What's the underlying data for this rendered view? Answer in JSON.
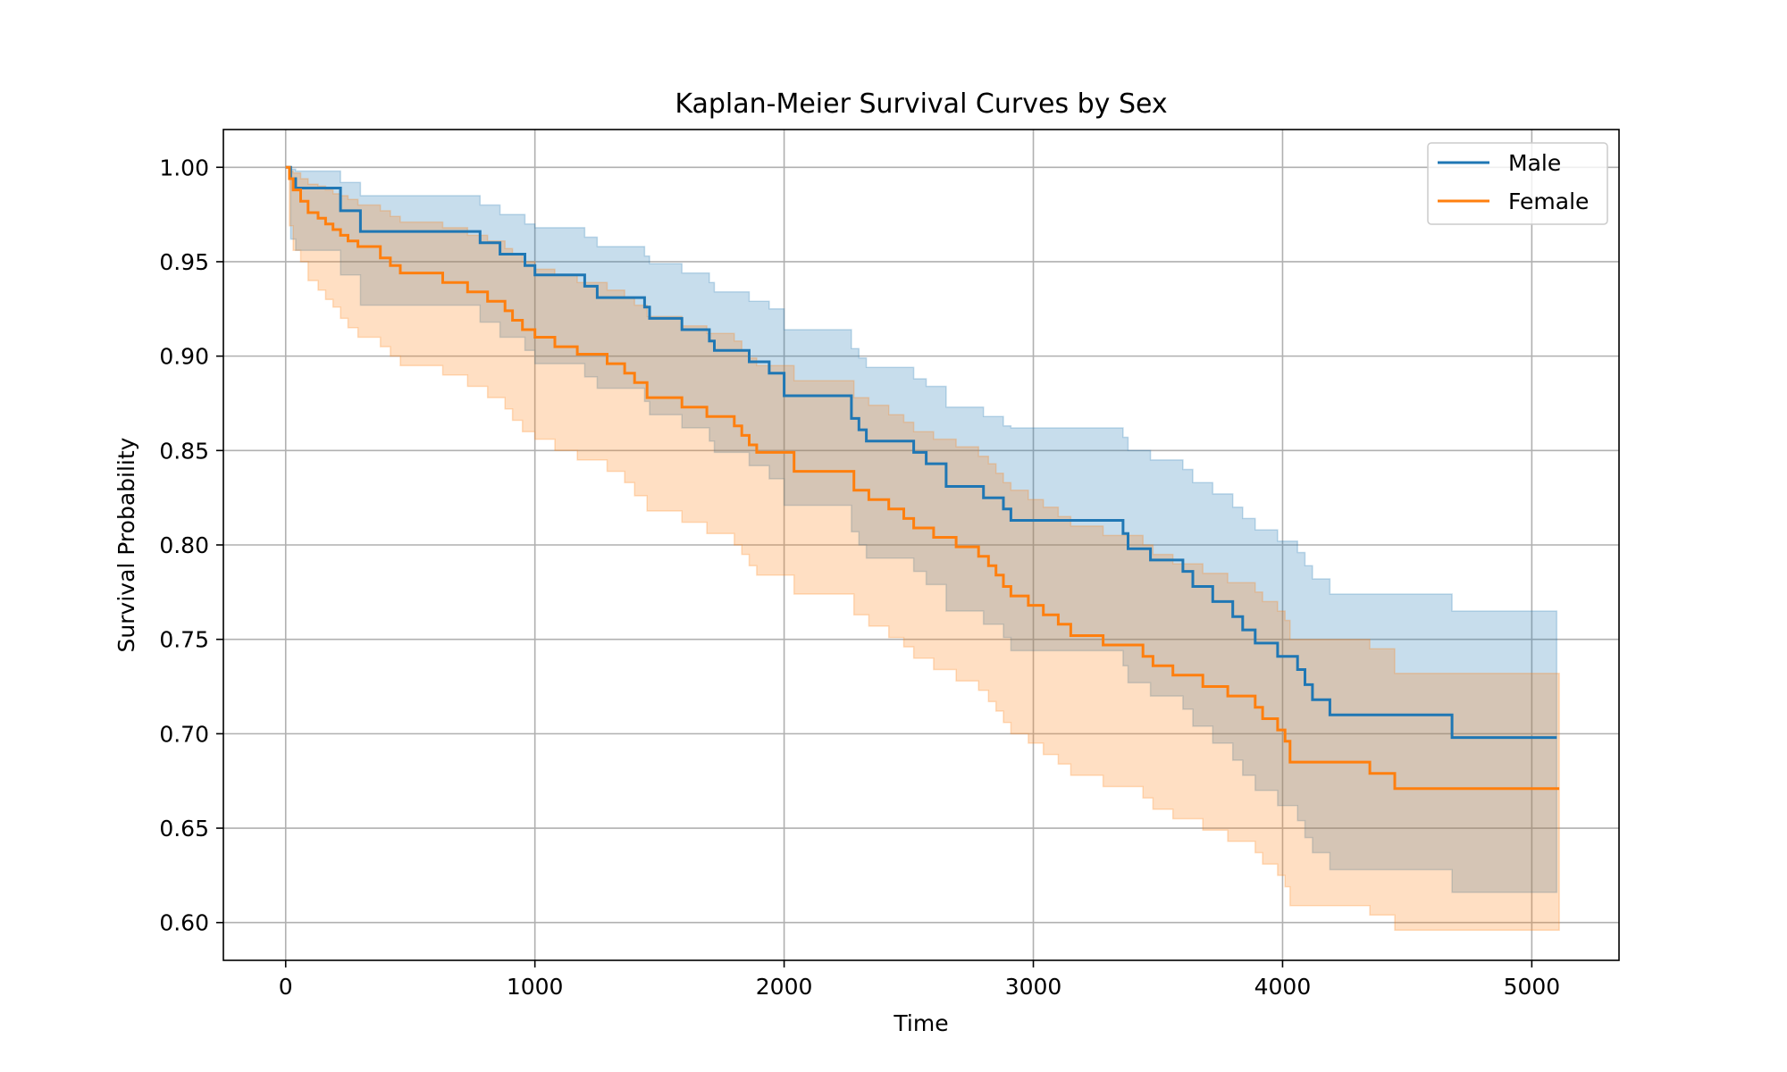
{
  "chart_data": {
    "type": "line",
    "step": "post",
    "title": "Kaplan-Meier Survival Curves by Sex",
    "xlabel": "Time",
    "ylabel": "Survival Probability",
    "xlim": [
      -250,
      5350
    ],
    "ylim": [
      0.58,
      1.02
    ],
    "xticks": [
      0,
      1000,
      2000,
      3000,
      4000,
      5000
    ],
    "yticks": [
      0.6,
      0.65,
      0.7,
      0.75,
      0.8,
      0.85,
      0.9,
      0.95,
      1.0
    ],
    "xtick_labels": [
      "0",
      "1000",
      "2000",
      "3000",
      "4000",
      "5000"
    ],
    "ytick_labels": [
      "0.60",
      "0.65",
      "0.70",
      "0.75",
      "0.80",
      "0.85",
      "0.90",
      "0.95",
      "1.00"
    ],
    "grid": true,
    "legend_position": "upper right",
    "series": [
      {
        "name": "Male",
        "color": "#1f77b4",
        "x": [
          0,
          20,
          40,
          220,
          300,
          780,
          860,
          960,
          1000,
          1200,
          1250,
          1440,
          1460,
          1590,
          1700,
          1720,
          1860,
          1940,
          2000,
          2270,
          2300,
          2330,
          2520,
          2570,
          2650,
          2800,
          2880,
          2910,
          3360,
          3380,
          3470,
          3600,
          3640,
          3720,
          3800,
          3840,
          3890,
          3980,
          4060,
          4090,
          4120,
          4190,
          4680,
          5100
        ],
        "y": [
          1.0,
          0.994,
          0.989,
          0.977,
          0.966,
          0.96,
          0.954,
          0.948,
          0.943,
          0.937,
          0.931,
          0.926,
          0.92,
          0.914,
          0.908,
          0.903,
          0.897,
          0.891,
          0.879,
          0.867,
          0.861,
          0.855,
          0.849,
          0.843,
          0.831,
          0.825,
          0.819,
          0.813,
          0.806,
          0.798,
          0.792,
          0.786,
          0.778,
          0.77,
          0.762,
          0.755,
          0.748,
          0.741,
          0.734,
          0.726,
          0.718,
          0.71,
          0.698,
          0.698
        ],
        "ci_x": [
          0,
          20,
          40,
          220,
          300,
          780,
          860,
          960,
          1000,
          1200,
          1250,
          1440,
          1460,
          1590,
          1700,
          1720,
          1860,
          1940,
          2000,
          2270,
          2300,
          2330,
          2520,
          2570,
          2650,
          2800,
          2880,
          2910,
          3360,
          3380,
          3470,
          3600,
          3640,
          3720,
          3800,
          3840,
          3890,
          3980,
          4060,
          4090,
          4120,
          4190,
          4680,
          5100
        ],
        "ci_lower": [
          1.0,
          0.962,
          0.956,
          0.943,
          0.927,
          0.918,
          0.91,
          0.903,
          0.896,
          0.889,
          0.883,
          0.876,
          0.869,
          0.862,
          0.855,
          0.849,
          0.842,
          0.835,
          0.821,
          0.807,
          0.8,
          0.793,
          0.786,
          0.779,
          0.765,
          0.758,
          0.751,
          0.744,
          0.736,
          0.727,
          0.72,
          0.713,
          0.704,
          0.695,
          0.686,
          0.678,
          0.67,
          0.662,
          0.654,
          0.645,
          0.637,
          0.628,
          0.616,
          0.616
        ],
        "ci_upper": [
          1.0,
          0.999,
          0.998,
          0.992,
          0.985,
          0.98,
          0.975,
          0.97,
          0.968,
          0.963,
          0.958,
          0.953,
          0.949,
          0.944,
          0.939,
          0.934,
          0.929,
          0.925,
          0.914,
          0.904,
          0.899,
          0.894,
          0.888,
          0.884,
          0.873,
          0.868,
          0.863,
          0.862,
          0.857,
          0.85,
          0.845,
          0.84,
          0.833,
          0.827,
          0.82,
          0.814,
          0.808,
          0.802,
          0.796,
          0.789,
          0.782,
          0.774,
          0.765,
          0.765
        ]
      },
      {
        "name": "Female",
        "color": "#ff7f0e",
        "x": [
          0,
          15,
          30,
          60,
          90,
          130,
          160,
          190,
          220,
          250,
          290,
          380,
          420,
          460,
          630,
          730,
          810,
          880,
          910,
          950,
          1000,
          1080,
          1170,
          1290,
          1360,
          1400,
          1450,
          1590,
          1690,
          1800,
          1830,
          1860,
          1890,
          2040,
          2280,
          2340,
          2420,
          2480,
          2520,
          2600,
          2690,
          2780,
          2820,
          2850,
          2880,
          2910,
          2980,
          3040,
          3100,
          3150,
          3280,
          3440,
          3480,
          3560,
          3680,
          3780,
          3890,
          3920,
          3980,
          4010,
          4030,
          4350,
          4450,
          5110
        ],
        "y": [
          1.0,
          0.994,
          0.988,
          0.982,
          0.976,
          0.973,
          0.97,
          0.967,
          0.964,
          0.961,
          0.958,
          0.952,
          0.948,
          0.944,
          0.939,
          0.934,
          0.929,
          0.924,
          0.919,
          0.914,
          0.91,
          0.905,
          0.901,
          0.896,
          0.891,
          0.886,
          0.878,
          0.873,
          0.868,
          0.863,
          0.858,
          0.853,
          0.849,
          0.839,
          0.829,
          0.824,
          0.819,
          0.814,
          0.809,
          0.804,
          0.799,
          0.794,
          0.789,
          0.784,
          0.778,
          0.773,
          0.768,
          0.763,
          0.758,
          0.752,
          0.747,
          0.741,
          0.736,
          0.731,
          0.725,
          0.72,
          0.714,
          0.708,
          0.702,
          0.696,
          0.685,
          0.679,
          0.671,
          0.671
        ],
        "ci_x": [
          0,
          15,
          30,
          60,
          90,
          130,
          160,
          190,
          220,
          250,
          290,
          380,
          420,
          460,
          630,
          730,
          810,
          880,
          910,
          950,
          1000,
          1080,
          1170,
          1290,
          1360,
          1400,
          1450,
          1590,
          1690,
          1800,
          1830,
          1860,
          1890,
          2040,
          2280,
          2340,
          2420,
          2480,
          2520,
          2600,
          2690,
          2780,
          2820,
          2850,
          2880,
          2910,
          2980,
          3040,
          3100,
          3150,
          3280,
          3440,
          3480,
          3560,
          3680,
          3780,
          3890,
          3920,
          3980,
          4010,
          4030,
          4350,
          4450,
          5110
        ],
        "ci_lower": [
          1.0,
          0.969,
          0.956,
          0.95,
          0.94,
          0.935,
          0.93,
          0.926,
          0.92,
          0.915,
          0.91,
          0.905,
          0.9,
          0.895,
          0.89,
          0.884,
          0.878,
          0.872,
          0.866,
          0.86,
          0.856,
          0.85,
          0.845,
          0.839,
          0.833,
          0.826,
          0.818,
          0.812,
          0.806,
          0.8,
          0.795,
          0.789,
          0.784,
          0.774,
          0.763,
          0.757,
          0.751,
          0.746,
          0.74,
          0.734,
          0.728,
          0.723,
          0.717,
          0.712,
          0.706,
          0.7,
          0.695,
          0.689,
          0.684,
          0.678,
          0.672,
          0.666,
          0.66,
          0.655,
          0.649,
          0.643,
          0.637,
          0.631,
          0.625,
          0.619,
          0.609,
          0.604,
          0.596,
          0.596
        ],
        "ci_upper": [
          1.0,
          0.998,
          0.997,
          0.994,
          0.991,
          0.99,
          0.988,
          0.986,
          0.985,
          0.983,
          0.98,
          0.977,
          0.974,
          0.971,
          0.968,
          0.964,
          0.961,
          0.957,
          0.954,
          0.95,
          0.946,
          0.943,
          0.939,
          0.935,
          0.931,
          0.927,
          0.921,
          0.916,
          0.912,
          0.908,
          0.903,
          0.899,
          0.895,
          0.887,
          0.878,
          0.874,
          0.869,
          0.865,
          0.86,
          0.856,
          0.852,
          0.847,
          0.843,
          0.838,
          0.833,
          0.829,
          0.824,
          0.82,
          0.815,
          0.81,
          0.805,
          0.8,
          0.795,
          0.79,
          0.785,
          0.78,
          0.775,
          0.77,
          0.765,
          0.76,
          0.75,
          0.745,
          0.732,
          0.732
        ]
      }
    ]
  }
}
